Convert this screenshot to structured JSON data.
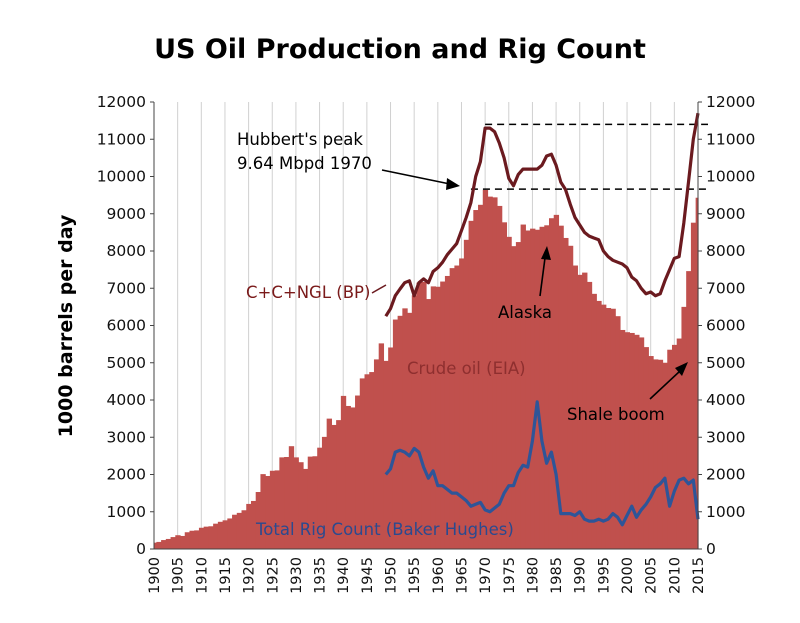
{
  "chart_data": {
    "type": "area",
    "title": "US Oil Production and Rig Count",
    "ylabel": "1000 barrels per day",
    "ylim": [
      0,
      12000
    ],
    "yticks": [
      0,
      1000,
      2000,
      3000,
      4000,
      5000,
      6000,
      7000,
      8000,
      9000,
      10000,
      11000,
      12000
    ],
    "right_yticks": [
      0,
      1000,
      2000,
      3000,
      4000,
      5000,
      6000,
      7000,
      8000,
      9000,
      10000,
      11000,
      12000
    ],
    "xlim": [
      1900,
      2015
    ],
    "xticks": [
      1900,
      1905,
      1910,
      1915,
      1920,
      1925,
      1930,
      1935,
      1940,
      1945,
      1950,
      1955,
      1960,
      1965,
      1970,
      1975,
      1980,
      1985,
      1990,
      1995,
      2000,
      2005,
      2010,
      2015
    ],
    "grid": "vertical",
    "colors": {
      "crude": "#c0504d",
      "ngl": "#6b1a1f",
      "rig": "#2e5598",
      "grid": "#d0d0d0",
      "dash": "#000000"
    },
    "series": [
      {
        "name": "Crude oil (EIA)",
        "kind": "area",
        "x": [
          1900,
          1901,
          1902,
          1903,
          1904,
          1905,
          1906,
          1907,
          1908,
          1909,
          1910,
          1911,
          1912,
          1913,
          1914,
          1915,
          1916,
          1917,
          1918,
          1919,
          1920,
          1921,
          1922,
          1923,
          1924,
          1925,
          1926,
          1927,
          1928,
          1929,
          1930,
          1931,
          1932,
          1933,
          1934,
          1935,
          1936,
          1937,
          1938,
          1939,
          1940,
          1941,
          1942,
          1943,
          1944,
          1945,
          1946,
          1947,
          1948,
          1949,
          1950,
          1951,
          1952,
          1953,
          1954,
          1955,
          1956,
          1957,
          1958,
          1959,
          1960,
          1961,
          1962,
          1963,
          1964,
          1965,
          1966,
          1967,
          1968,
          1969,
          1970,
          1971,
          1972,
          1973,
          1974,
          1975,
          1976,
          1977,
          1978,
          1979,
          1980,
          1981,
          1982,
          1983,
          1984,
          1985,
          1986,
          1987,
          1988,
          1989,
          1990,
          1991,
          1992,
          1993,
          1994,
          1995,
          1996,
          1997,
          1998,
          1999,
          2000,
          2001,
          2002,
          2003,
          2004,
          2005,
          2006,
          2007,
          2008,
          2009,
          2010,
          2011,
          2012,
          2013,
          2014,
          2015
        ],
        "values": [
          170,
          190,
          240,
          270,
          320,
          370,
          350,
          450,
          490,
          500,
          570,
          600,
          610,
          680,
          730,
          770,
          820,
          920,
          970,
          1040,
          1210,
          1290,
          1530,
          2010,
          1960,
          2100,
          2110,
          2460,
          2470,
          2760,
          2460,
          2330,
          2150,
          2480,
          2490,
          2720,
          3010,
          3500,
          3330,
          3460,
          4110,
          3840,
          3800,
          4120,
          4580,
          4690,
          4750,
          5090,
          5520,
          5050,
          5410,
          6160,
          6260,
          6460,
          6340,
          6810,
          7150,
          7170,
          6710,
          7050,
          7040,
          7180,
          7330,
          7540,
          7610,
          7800,
          8300,
          8810,
          9100,
          9240,
          9640,
          9460,
          9440,
          9210,
          8770,
          8380,
          8130,
          8240,
          8710,
          8550,
          8600,
          8570,
          8650,
          8690,
          8880,
          8970,
          8680,
          8350,
          8140,
          7610,
          7360,
          7420,
          7170,
          6850,
          6660,
          6560,
          6470,
          6450,
          6250,
          5880,
          5820,
          5800,
          5750,
          5680,
          5420,
          5180,
          5090,
          5080,
          5000,
          5350,
          5480,
          5650,
          6500,
          7460,
          8760,
          9430
        ]
      },
      {
        "name": "C+C+NGL (BP)",
        "kind": "line",
        "x": [
          1949,
          1950,
          1951,
          1952,
          1953,
          1954,
          1955,
          1956,
          1957,
          1958,
          1959,
          1960,
          1961,
          1962,
          1963,
          1964,
          1965,
          1966,
          1967,
          1968,
          1969,
          1970,
          1971,
          1972,
          1973,
          1974,
          1975,
          1976,
          1977,
          1978,
          1979,
          1980,
          1981,
          1982,
          1983,
          1984,
          1985,
          1986,
          1987,
          1988,
          1989,
          1990,
          1991,
          1992,
          1993,
          1994,
          1995,
          1996,
          1997,
          1998,
          1999,
          2000,
          2001,
          2002,
          2003,
          2004,
          2005,
          2006,
          2007,
          2008,
          2009,
          2010,
          2011,
          2012,
          2013,
          2014,
          2015
        ],
        "values": [
          6250,
          6450,
          6800,
          6980,
          7150,
          7200,
          6800,
          7150,
          7250,
          7150,
          7450,
          7550,
          7700,
          7900,
          8050,
          8200,
          8550,
          8900,
          9300,
          10000,
          10400,
          11300,
          11300,
          11200,
          10900,
          10500,
          9950,
          9750,
          10050,
          10200,
          10200,
          10200,
          10200,
          10300,
          10550,
          10600,
          10300,
          9850,
          9650,
          9250,
          8900,
          8700,
          8500,
          8400,
          8350,
          8300,
          8000,
          7850,
          7750,
          7700,
          7650,
          7550,
          7300,
          7200,
          7000,
          6850,
          6900,
          6800,
          6850,
          7200,
          7500,
          7800,
          7850,
          8750,
          9850,
          11000,
          11700
        ]
      },
      {
        "name": "Total Rig Count (Baker Hughes)",
        "kind": "line",
        "x": [
          1949,
          1950,
          1951,
          1952,
          1953,
          1954,
          1955,
          1956,
          1957,
          1958,
          1959,
          1960,
          1961,
          1962,
          1963,
          1964,
          1965,
          1966,
          1967,
          1968,
          1969,
          1970,
          1971,
          1972,
          1973,
          1974,
          1975,
          1976,
          1977,
          1978,
          1979,
          1980,
          1981,
          1982,
          1983,
          1984,
          1985,
          1986,
          1987,
          1988,
          1989,
          1990,
          1991,
          1992,
          1993,
          1994,
          1995,
          1996,
          1997,
          1998,
          1999,
          2000,
          2001,
          2002,
          2003,
          2004,
          2005,
          2006,
          2007,
          2008,
          2009,
          2010,
          2011,
          2012,
          2013,
          2014,
          2015
        ],
        "values": [
          2000,
          2150,
          2600,
          2650,
          2600,
          2500,
          2700,
          2600,
          2200,
          1900,
          2100,
          1700,
          1700,
          1600,
          1500,
          1500,
          1400,
          1300,
          1150,
          1200,
          1250,
          1050,
          1000,
          1100,
          1200,
          1500,
          1700,
          1700,
          2050,
          2250,
          2200,
          2900,
          3950,
          2900,
          2300,
          2600,
          2000,
          950,
          950,
          950,
          900,
          1000,
          800,
          750,
          750,
          800,
          750,
          800,
          950,
          850,
          650,
          900,
          1150,
          850,
          1050,
          1200,
          1400,
          1650,
          1750,
          1900,
          1150,
          1550,
          1850,
          1900,
          1750,
          1850,
          800
        ]
      }
    ],
    "reference_lines": [
      11400,
      9660
    ],
    "annotations": {
      "peak_line1": "Hubbert's peak",
      "peak_line2": "9.64 Mbpd 1970",
      "ngl_label": "C+C+NGL (BP)",
      "alaska": "Alaska",
      "crude_label": "Crude oil (EIA)",
      "shale": "Shale boom",
      "rig_label": "Total Rig Count (Baker Hughes)"
    }
  }
}
